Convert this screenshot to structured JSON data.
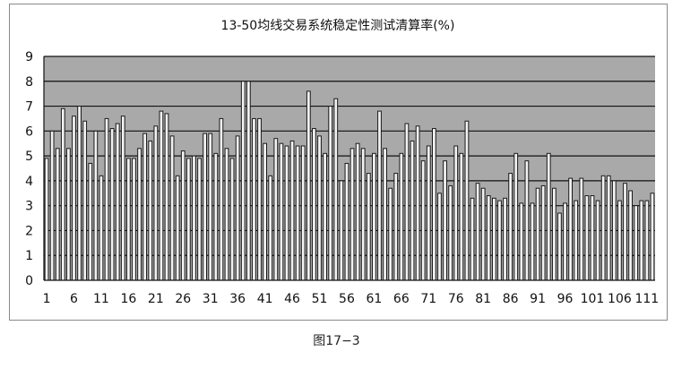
{
  "caption": "图17−3",
  "chart_data": {
    "type": "bar",
    "title": "13-50均线交易系统稳定性测试清算率(%)",
    "xlabel": "",
    "ylabel": "",
    "ylim": [
      0,
      9
    ],
    "yticks": [
      "0",
      "1",
      "2",
      "3",
      "4",
      "5",
      "6",
      "7",
      "8",
      "9"
    ],
    "grid": true,
    "legend": "none",
    "colors": {
      "plot_bg": "#a9a9a9",
      "bar_fill": "#f2f2f2",
      "bar_stroke": "#1a1a1a",
      "grid": "#111111"
    },
    "x": [
      1,
      2,
      3,
      4,
      5,
      6,
      7,
      8,
      9,
      10,
      11,
      12,
      13,
      14,
      15,
      16,
      17,
      18,
      19,
      20,
      21,
      22,
      23,
      24,
      25,
      26,
      27,
      28,
      29,
      30,
      31,
      32,
      33,
      34,
      35,
      36,
      37,
      38,
      39,
      40,
      41,
      42,
      43,
      44,
      45,
      46,
      47,
      48,
      49,
      50,
      51,
      52,
      53,
      54,
      55,
      56,
      57,
      58,
      59,
      60,
      61,
      62,
      63,
      64,
      65,
      66,
      67,
      68,
      69,
      70,
      71,
      72,
      73,
      74,
      75,
      76,
      77,
      78,
      79,
      80,
      81,
      82,
      83,
      84,
      85,
      86,
      87,
      88,
      89,
      90,
      91,
      92,
      93,
      94,
      95,
      96,
      97,
      98,
      99,
      100,
      101,
      102,
      103,
      104,
      105,
      106,
      107,
      108,
      109,
      110,
      111,
      112
    ],
    "xtick_labels": [
      "1",
      "6",
      "11",
      "16",
      "21",
      "26",
      "31",
      "36",
      "41",
      "46",
      "51",
      "56",
      "61",
      "66",
      "71",
      "76",
      "81",
      "86",
      "91",
      "96",
      "101",
      "106",
      "111"
    ],
    "values": [
      4.9,
      6.0,
      5.3,
      6.9,
      5.3,
      6.6,
      7.0,
      6.4,
      4.7,
      6.0,
      4.2,
      6.5,
      6.1,
      6.3,
      6.6,
      4.9,
      4.9,
      5.3,
      5.9,
      5.6,
      6.2,
      6.8,
      6.7,
      5.8,
      4.2,
      5.2,
      4.9,
      5.0,
      4.9,
      5.9,
      5.9,
      5.1,
      6.5,
      5.3,
      4.9,
      5.8,
      8.0,
      8.0,
      6.5,
      6.5,
      5.5,
      4.2,
      5.7,
      5.5,
      5.4,
      5.6,
      5.4,
      5.4,
      7.6,
      6.1,
      5.8,
      5.1,
      7.0,
      7.3,
      4.0,
      4.7,
      5.3,
      5.5,
      5.3,
      4.3,
      5.1,
      6.8,
      5.3,
      3.7,
      4.3,
      5.1,
      6.3,
      5.6,
      6.2,
      4.8,
      5.4,
      6.1,
      3.5,
      4.8,
      3.8,
      5.4,
      5.1,
      6.4,
      3.3,
      3.9,
      3.7,
      3.4,
      3.3,
      3.2,
      3.3,
      4.3,
      5.1,
      3.1,
      4.8,
      3.1,
      3.7,
      3.8,
      5.1,
      3.7,
      2.7,
      3.1,
      4.1,
      3.2,
      4.1,
      3.4,
      3.4,
      3.2,
      4.2,
      4.2,
      4.0,
      3.2,
      3.9,
      3.6,
      3.0,
      3.2,
      3.2,
      3.5
    ]
  }
}
